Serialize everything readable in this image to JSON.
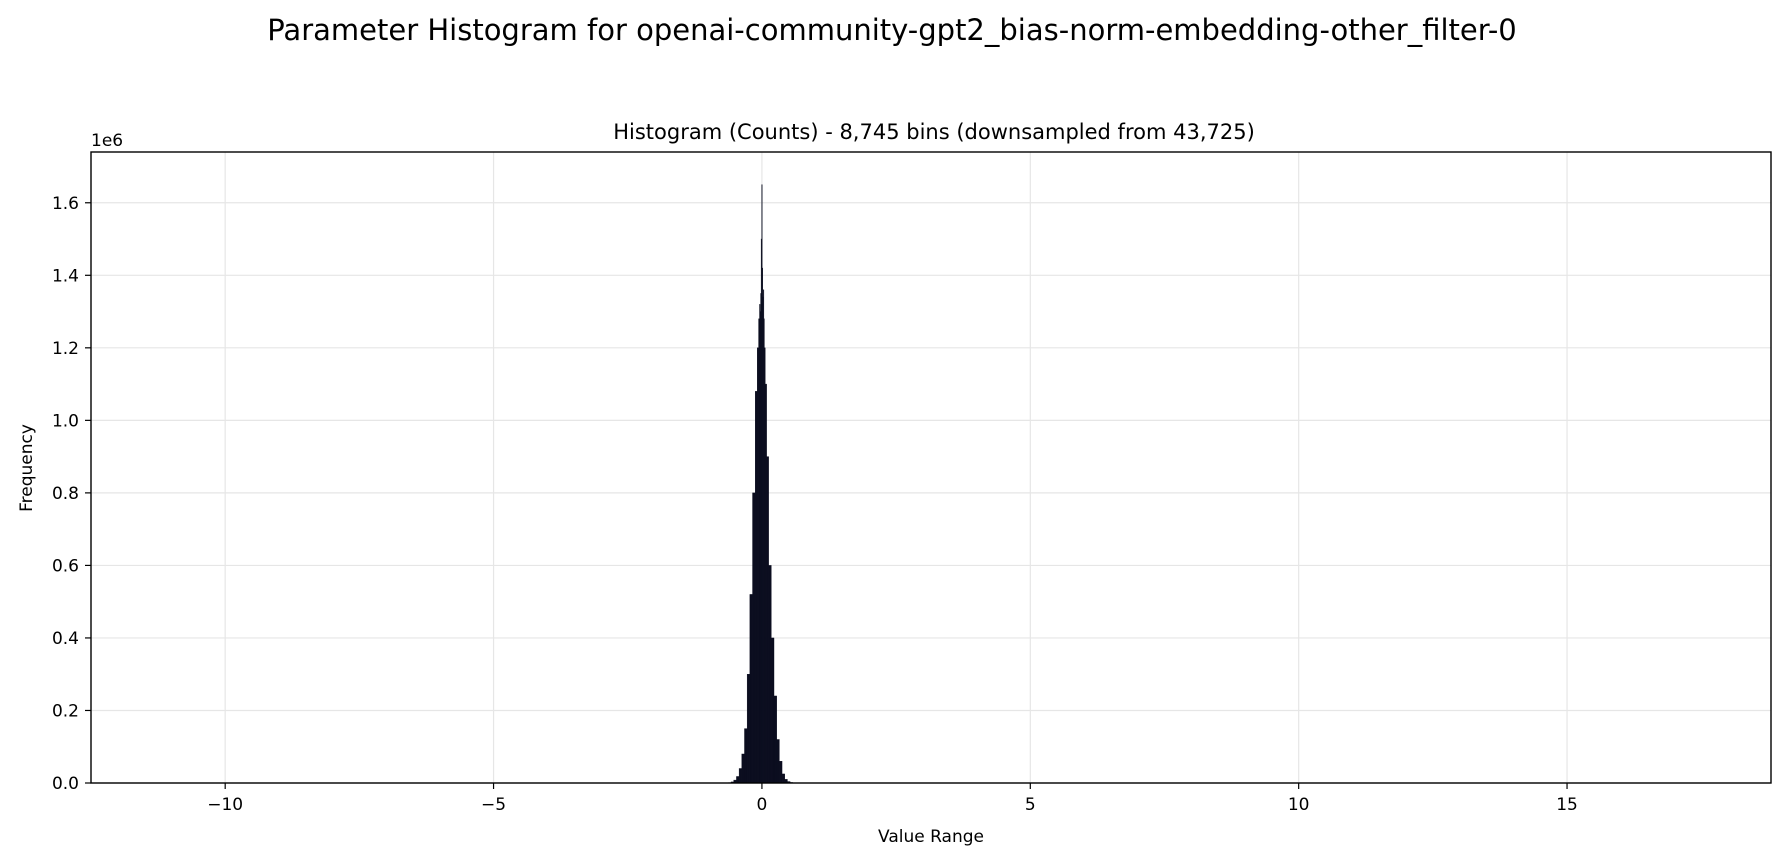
{
  "figure": {
    "suptitle": "Parameter Histogram for openai-community-gpt2_bias-norm-embedding-other_filter-0"
  },
  "chart_data": {
    "type": "bar",
    "title": "Histogram (Counts) - 8,745 bins (downsampled from 43,725)",
    "xlabel": "Value Range",
    "ylabel": "Frequency",
    "y_offset_label": "1e6",
    "xlim": [
      -12.5,
      18.8
    ],
    "ylim": [
      0,
      1740000
    ],
    "x_ticks": [
      -10,
      -5,
      0,
      5,
      10,
      15
    ],
    "x_tick_labels": [
      "−10",
      "−5",
      "0",
      "5",
      "10",
      "15"
    ],
    "y_ticks": [
      0,
      200000,
      400000,
      600000,
      800000,
      1000000,
      1200000,
      1400000,
      1600000
    ],
    "y_tick_labels": [
      "0.0",
      "0.2",
      "0.4",
      "0.6",
      "0.8",
      "1.0",
      "1.2",
      "1.4",
      "1.6"
    ],
    "grid": true,
    "bar_color": "#0b0d1f",
    "grid_color": "#e6e6e6",
    "bins": {
      "x": [
        -0.6,
        -0.55,
        -0.5,
        -0.45,
        -0.4,
        -0.35,
        -0.3,
        -0.25,
        -0.2,
        -0.15,
        -0.1,
        -0.075,
        -0.05,
        -0.04,
        -0.03,
        -0.02,
        -0.01,
        0,
        0.01,
        0.02,
        0.03,
        0.04,
        0.05,
        0.075,
        0.1,
        0.15,
        0.2,
        0.25,
        0.3,
        0.35,
        0.4,
        0.45,
        0.5,
        0.55,
        0.6
      ],
      "counts": [
        1000,
        3000,
        8000,
        18000,
        40000,
        80000,
        150000,
        300000,
        520000,
        800000,
        1080000,
        1200000,
        1280000,
        1320000,
        1300000,
        1350000,
        1500000,
        1650000,
        1420000,
        1340000,
        1360000,
        1280000,
        1200000,
        1100000,
        900000,
        600000,
        400000,
        240000,
        120000,
        60000,
        25000,
        10000,
        4000,
        1500,
        500
      ]
    }
  }
}
